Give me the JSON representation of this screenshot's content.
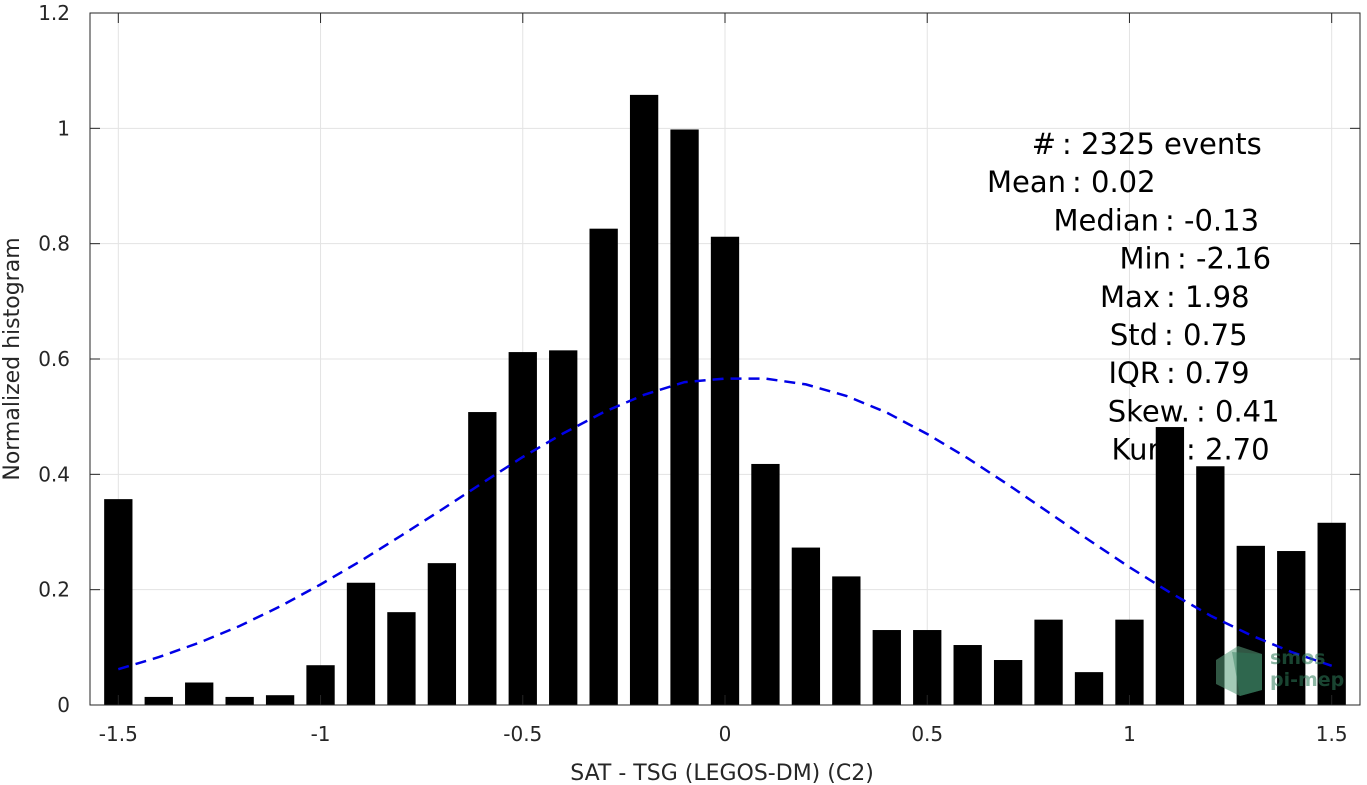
{
  "chart_data": {
    "type": "bar",
    "xlabel": "SAT - TSG (LEGOS-DM) (C2)",
    "ylabel": "Normalized histogram",
    "xlim": [
      -1.57,
      1.57
    ],
    "ylim": [
      0,
      1.2
    ],
    "x_ticks": [
      -1.5,
      -1,
      -0.5,
      0,
      0.5,
      1,
      1.5
    ],
    "x_tick_labels": [
      "-1.5",
      "-1",
      "-0.5",
      "0",
      "0.5",
      "1",
      "1.5"
    ],
    "y_ticks": [
      0,
      0.2,
      0.4,
      0.6,
      0.8,
      1,
      1.2
    ],
    "y_tick_labels": [
      "0",
      "0.2",
      "0.4",
      "0.6",
      "0.8",
      "1",
      "1.2"
    ],
    "grid": true,
    "bar_width": 0.07,
    "bin_centers": [
      -1.5,
      -1.4,
      -1.3,
      -1.2,
      -1.1,
      -1.0,
      -0.9,
      -0.8,
      -0.7,
      -0.6,
      -0.5,
      -0.4,
      -0.3,
      -0.2,
      -0.1,
      0.0,
      0.1,
      0.2,
      0.3,
      0.4,
      0.5,
      0.6,
      0.7,
      0.8,
      0.9,
      1.0,
      1.1,
      1.2,
      1.3,
      1.4,
      1.5
    ],
    "values": [
      0.357,
      0.014,
      0.039,
      0.014,
      0.017,
      0.069,
      0.212,
      0.161,
      0.246,
      0.508,
      0.612,
      0.615,
      0.826,
      1.058,
      0.998,
      0.812,
      0.418,
      0.273,
      0.223,
      0.13,
      0.13,
      0.104,
      0.078,
      0.148,
      0.057,
      0.148,
      0.482,
      0.414,
      0.276,
      0.267,
      0.316
    ],
    "series": [
      {
        "type": "line",
        "style": "dashed",
        "color": "#0000e6",
        "x": [
          -1.5,
          -1.4,
          -1.3,
          -1.2,
          -1.1,
          -1.0,
          -0.9,
          -0.8,
          -0.7,
          -0.6,
          -0.5,
          -0.4,
          -0.3,
          -0.2,
          -0.1,
          0.0,
          0.1,
          0.2,
          0.3,
          0.4,
          0.5,
          0.6,
          0.7,
          0.8,
          0.9,
          1.0,
          1.1,
          1.2,
          1.3,
          1.4,
          1.5
        ],
        "y": [
          0.062,
          0.083,
          0.108,
          0.137,
          0.171,
          0.209,
          0.25,
          0.294,
          0.339,
          0.385,
          0.43,
          0.471,
          0.508,
          0.538,
          0.56,
          0.566,
          0.566,
          0.556,
          0.536,
          0.507,
          0.47,
          0.428,
          0.382,
          0.334,
          0.286,
          0.239,
          0.195,
          0.155,
          0.121,
          0.092,
          0.068
        ]
      }
    ],
    "bar_color": "#000000",
    "annotations": [
      {
        "label": "#  ",
        "value": ": 2325 events"
      },
      {
        "label": "Mean",
        "value": ": 0.02"
      },
      {
        "label": "Median",
        "value": ": -0.13"
      },
      {
        "label": "Min",
        "value": ": -2.16"
      },
      {
        "label": "Max",
        "value": ": 1.98"
      },
      {
        "label": "Std",
        "value": ": 0.75"
      },
      {
        "label": "IQR",
        "value": ": 0.79"
      },
      {
        "label": "Skew.",
        "value": ": 0.41"
      },
      {
        "label": "Kurt.",
        "value": ": 2.70"
      }
    ]
  },
  "watermark": {
    "line1": "smos",
    "line2": "pi-mep",
    "color": "#2f7d5a"
  }
}
